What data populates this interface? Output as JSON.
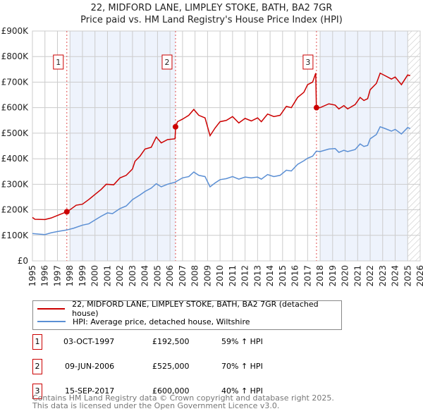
{
  "chart_data": {
    "type": "line",
    "title": "22, MIDFORD LANE, LIMPLEY STOKE, BATH, BA2 7GR",
    "subtitle": "Price paid vs. HM Land Registry's House Price Index (HPI)",
    "xlim": [
      1995,
      2026
    ],
    "ylim": [
      0,
      900000
    ],
    "x_ticks": [
      "1995",
      "1996",
      "1997",
      "1998",
      "1999",
      "2000",
      "2001",
      "2002",
      "2003",
      "2004",
      "2005",
      "2006",
      "2007",
      "2008",
      "2009",
      "2010",
      "2011",
      "2012",
      "2013",
      "2014",
      "2015",
      "2016",
      "2017",
      "2018",
      "2019",
      "2020",
      "2021",
      "2022",
      "2023",
      "2024",
      "2025",
      "2026"
    ],
    "y_ticks": [
      "£0",
      "£100K",
      "£200K",
      "£300K",
      "£400K",
      "£500K",
      "£600K",
      "£700K",
      "£800K",
      "£900K"
    ],
    "grid": true,
    "series": [
      {
        "name": "22, MIDFORD LANE, LIMPLEY STOKE, BATH, BA2 7GR (detached house)",
        "color": "#cc0000",
        "x": [
          1995,
          1995.2,
          1996,
          1996.5,
          1997,
          1997.75,
          1998,
          1998.5,
          1999,
          1999.5,
          2000,
          2000.5,
          2000.9,
          2001.5,
          2002,
          2002.5,
          2003,
          2003.2,
          2003.6,
          2004,
          2004.5,
          2004.9,
          2005.3,
          2005.8,
          2006.4,
          2006.45,
          2006.6,
          2007,
          2007.5,
          2007.9,
          2008.3,
          2008.8,
          2009.2,
          2009.6,
          2010,
          2010.5,
          2011,
          2011.5,
          2012,
          2012.5,
          2013,
          2013.3,
          2013.8,
          2014.3,
          2014.8,
          2015.3,
          2015.7,
          2016.2,
          2016.7,
          2017,
          2017.4,
          2017.65,
          2017.7,
          2018,
          2018.7,
          2019.2,
          2019.5,
          2019.9,
          2020.2,
          2020.8,
          2021.2,
          2021.5,
          2021.8,
          2022,
          2022.5,
          2022.8,
          2023.2,
          2023.7,
          2024,
          2024.5,
          2025,
          2025.2
        ],
        "y": [
          170,
          163,
          162,
          168,
          178,
          192.5,
          200,
          218,
          222,
          240,
          260,
          280,
          300,
          298,
          325,
          335,
          360,
          390,
          410,
          438,
          445,
          485,
          462,
          475,
          478,
          525,
          545,
          555,
          570,
          593,
          570,
          560,
          490,
          520,
          545,
          550,
          565,
          540,
          558,
          548,
          560,
          545,
          575,
          565,
          570,
          605,
          600,
          640,
          660,
          690,
          700,
          735,
          600,
          600,
          615,
          610,
          595,
          608,
          595,
          612,
          640,
          628,
          635,
          670,
          695,
          735,
          725,
          712,
          720,
          690,
          728,
          725
        ]
      },
      {
        "name": "HPI: Average price, detached house, Wiltshire",
        "color": "#5b8fd4",
        "x": [
          1995,
          1996,
          1996.5,
          1997,
          1997.75,
          1998.3,
          1999,
          1999.5,
          2000,
          2000.5,
          2001,
          2001.4,
          2002,
          2002.5,
          2003,
          2003.6,
          2004,
          2004.5,
          2004.9,
          2005.3,
          2005.8,
          2006.4,
          2007,
          2007.5,
          2007.9,
          2008.3,
          2008.8,
          2009.2,
          2009.6,
          2010,
          2010.5,
          2011,
          2011.5,
          2012,
          2012.5,
          2013,
          2013.3,
          2013.8,
          2014.3,
          2014.8,
          2015.3,
          2015.7,
          2016.2,
          2016.7,
          2017,
          2017.4,
          2017.7,
          2018,
          2018.7,
          2019.2,
          2019.5,
          2019.9,
          2020.2,
          2020.8,
          2021.2,
          2021.5,
          2021.8,
          2022,
          2022.5,
          2022.8,
          2023.2,
          2023.7,
          2024,
          2024.5,
          2025,
          2025.2
        ],
        "y": [
          107,
          103,
          110,
          115,
          121,
          128,
          140,
          145,
          160,
          175,
          188,
          185,
          205,
          215,
          240,
          258,
          272,
          285,
          302,
          290,
          300,
          308,
          325,
          330,
          348,
          335,
          330,
          290,
          305,
          318,
          322,
          330,
          320,
          328,
          325,
          328,
          320,
          338,
          330,
          335,
          355,
          352,
          378,
          392,
          402,
          410,
          430,
          428,
          438,
          440,
          425,
          433,
          428,
          436,
          458,
          448,
          452,
          478,
          495,
          525,
          518,
          508,
          515,
          497,
          522,
          518
        ]
      }
    ],
    "sales": [
      {
        "label": "1",
        "x": 1997.75,
        "date": "03-OCT-1997",
        "price": "£192,500",
        "value": 192.5,
        "hpi": "59% ↑ HPI"
      },
      {
        "label": "2",
        "x": 2006.44,
        "date": "09-JUN-2006",
        "price": "£525,000",
        "value": 525,
        "hpi": "70% ↑ HPI"
      },
      {
        "label": "3",
        "x": 2017.71,
        "date": "15-SEP-2017",
        "price": "£600,000",
        "value": 600,
        "hpi": "40% ↑ HPI"
      }
    ],
    "legend_position": "below"
  },
  "footer": {
    "line1": "Contains HM Land Registry data © Crown copyright and database right 2025.",
    "line2": "This data is licensed under the Open Government Licence v3.0."
  }
}
